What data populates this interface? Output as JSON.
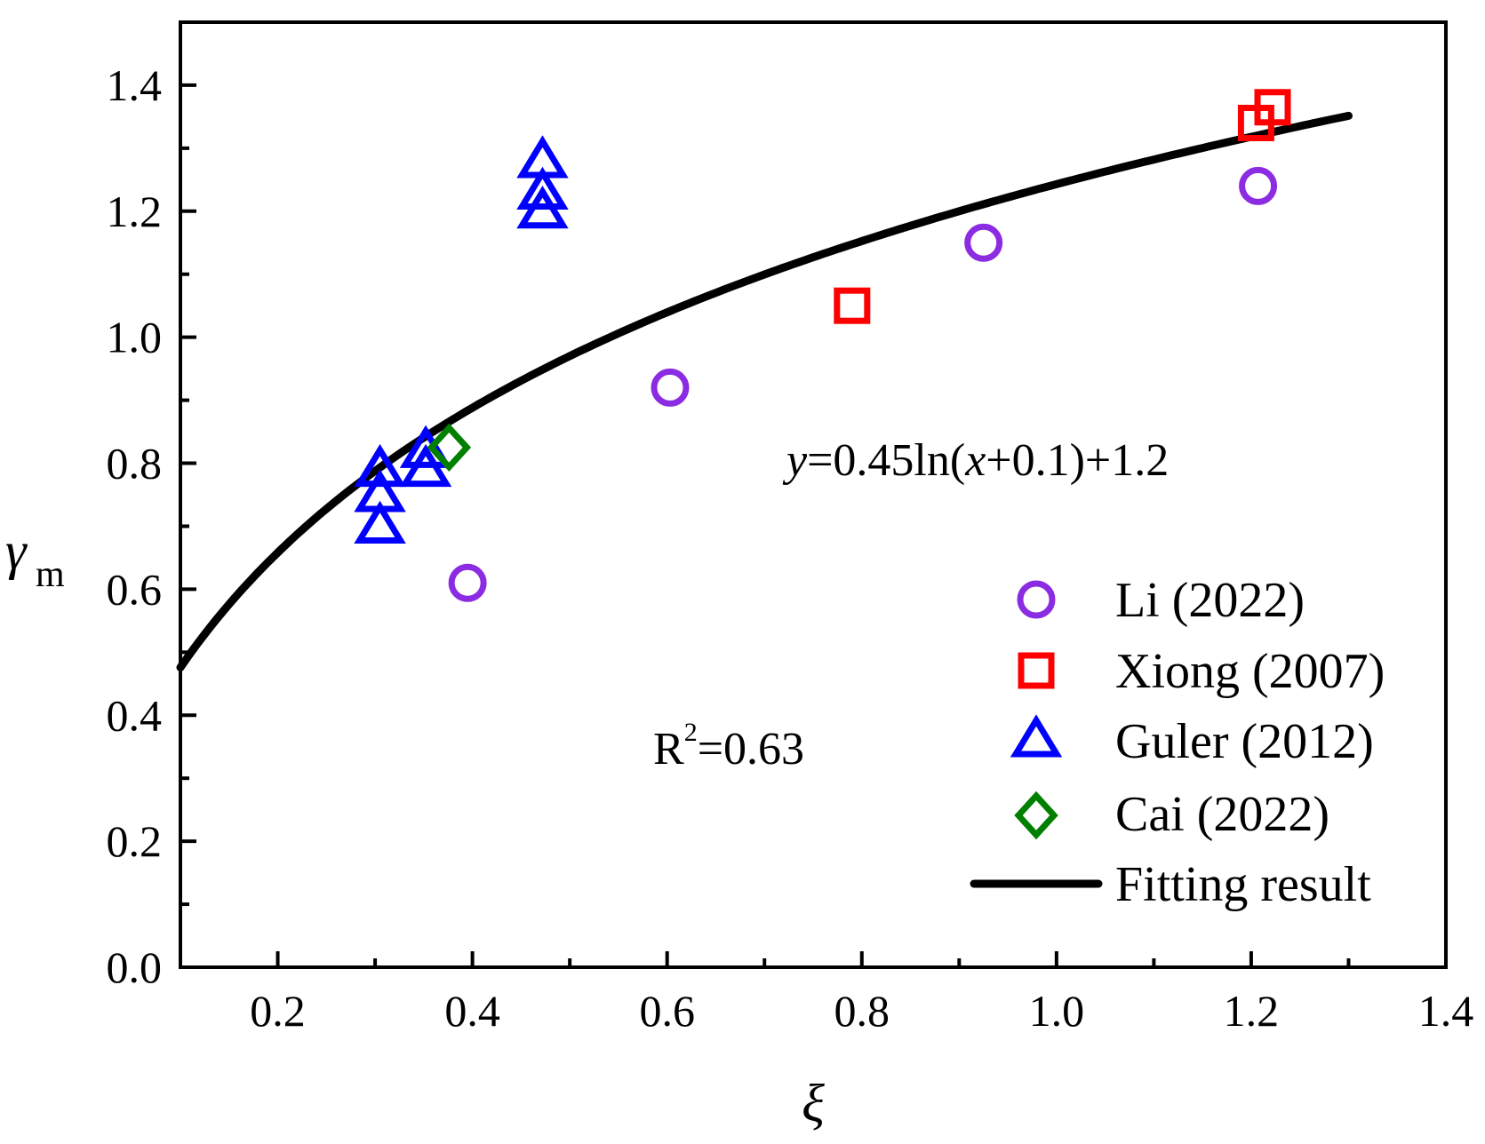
{
  "chart_data": {
    "type": "scatter",
    "xlabel": "ξ",
    "ylabel": "γ",
    "ylabel_sub": "m",
    "xlim": [
      0.1,
      1.4
    ],
    "ylim": [
      0.0,
      1.5
    ],
    "xticks": [
      0.2,
      0.4,
      0.6,
      0.8,
      1.0,
      1.2,
      1.4
    ],
    "xtick_labels": [
      "0.2",
      "0.4",
      "0.6",
      "0.8",
      "1.0",
      "1.2",
      "1.4"
    ],
    "yticks": [
      0.0,
      0.2,
      0.4,
      0.6,
      0.8,
      1.0,
      1.2,
      1.4
    ],
    "ytick_labels": [
      "0.0",
      "0.2",
      "0.4",
      "0.6",
      "0.8",
      "1.0",
      "1.2",
      "1.4"
    ],
    "series": [
      {
        "name": "Li (2022)",
        "marker": "circle",
        "color": "#8B2BE2",
        "x": [
          0.395,
          0.603,
          0.925,
          1.207
        ],
        "y": [
          0.61,
          0.92,
          1.15,
          1.24
        ]
      },
      {
        "name": "Xiong (2007)",
        "marker": "square",
        "color": "#FF0000",
        "x": [
          0.79,
          1.205,
          1.222
        ],
        "y": [
          1.05,
          1.34,
          1.365
        ]
      },
      {
        "name": "Guler (2012)",
        "marker": "triangle",
        "color": "#0000FF",
        "x": [
          0.305,
          0.305,
          0.305,
          0.352,
          0.352,
          0.472,
          0.472,
          0.472
        ],
        "y": [
          0.7,
          0.75,
          0.79,
          0.79,
          0.82,
          1.2,
          1.23,
          1.28
        ]
      },
      {
        "name": "Cai (2022)",
        "marker": "diamond",
        "color": "#008000",
        "x": [
          0.376
        ],
        "y": [
          0.825
        ]
      },
      {
        "name": "Fitting result",
        "type": "line",
        "color": "#000000",
        "equation": "y=0.45ln(x+0.1)+1.2",
        "a": 0.45,
        "b": 0.1,
        "c": 1.2,
        "x_range": [
          0.1,
          1.3
        ]
      }
    ],
    "annotations": {
      "equation": {
        "y": "y",
        "mid1": "=0.45ln(",
        "x": "x",
        "mid2": "+0.1)+1.2"
      },
      "r2": {
        "R": "R",
        "sup": "2",
        "value": "=0.63"
      }
    },
    "legend_position": "bottom-right"
  }
}
